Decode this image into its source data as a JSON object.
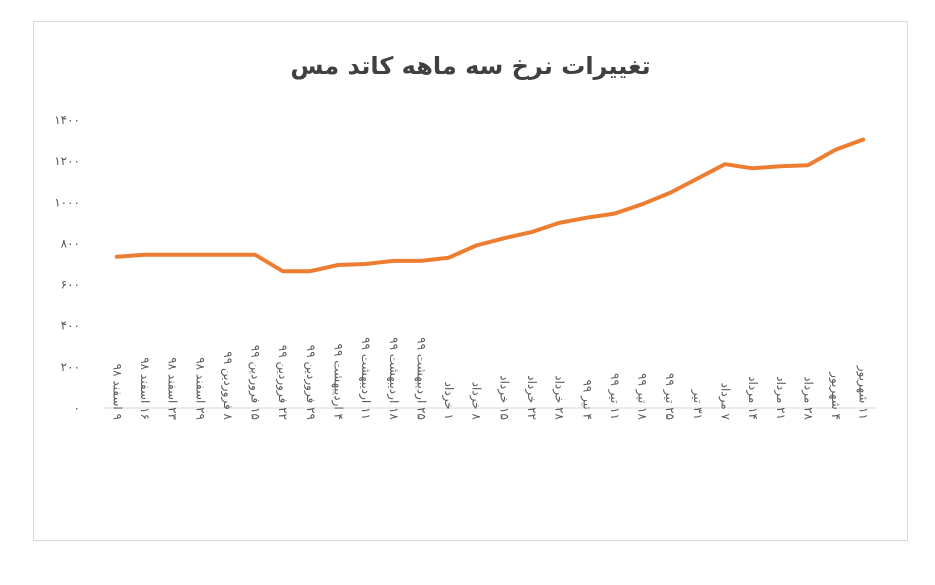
{
  "chart_data": {
    "type": "line",
    "title": "تغییرات نرخ سه ماهه کاتد مس",
    "categories": [
      "۹ اسفند ۹۸",
      "۱۶ اسفند ۹۸",
      "۲۳ اسفند ۹۸",
      "۲۹ اسفند ۹۸",
      "۸ فروردین ۹۹",
      "۱۵ فروردین ۹۹",
      "۲۲ فروردین ۹۹",
      "۲۹ فروردین ۹۹",
      "۴ اردیبهشت ۹۹",
      "۱۱ اردیبهشت ۹۹",
      "۱۸ اردیبهشت ۹۹",
      "۲۵ اردیبهشت ۹۹",
      "۱ خرداد",
      "۸ خرداد",
      "۱۵ خرداد",
      "۲۲ خرداد",
      "۲۸ خرداد",
      "۴ تیر ۹۹",
      "۱۱ تیر ۹۹",
      "۱۸ تیر ۹۹",
      "۲۵ تیر ۹۹",
      "۳۱ تیر",
      "۷ مرداد",
      "۱۴ مرداد",
      "۲۱ مرداد",
      "۲۸ مرداد",
      "۴ شهریور",
      "۱۱ شهریور"
    ],
    "series": [
      {
        "values": [
          735,
          745,
          745,
          745,
          745,
          745,
          665,
          665,
          695,
          700,
          715,
          715,
          730,
          790,
          825,
          855,
          900,
          925,
          945,
          990,
          1045,
          1115,
          1185,
          1165,
          1175,
          1180,
          1255,
          1305
        ]
      }
    ],
    "ylim": [
      0,
      1400
    ],
    "yticks": [
      "۰",
      "۲۰۰",
      "۴۰۰",
      "۶۰۰",
      "۸۰۰",
      "۱۰۰۰",
      "۱۲۰۰",
      "۱۴۰۰"
    ],
    "ytick_values": [
      0,
      200,
      400,
      600,
      800,
      1000,
      1200,
      1400
    ],
    "line_color": "#ED7D31",
    "grid": false,
    "legend": "none"
  }
}
